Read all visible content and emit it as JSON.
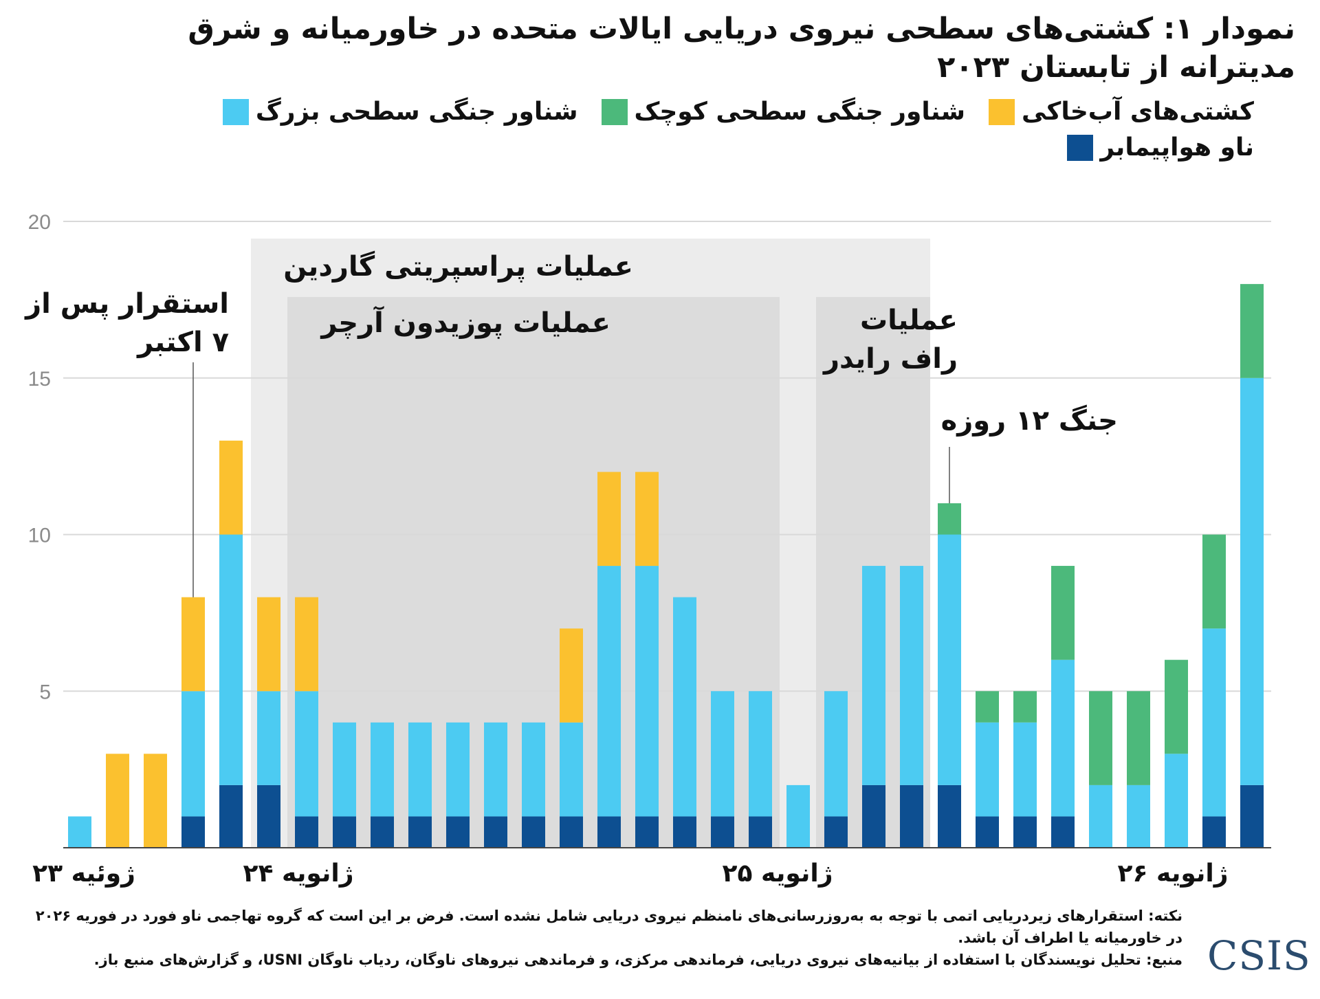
{
  "chart_data": {
    "type": "bar",
    "stacked": true,
    "title_lines": [
      "نمودار ۱: کشتی‌های سطحی نیروی دریایی ایالات متحده در خاورمیانه و شرق",
      "مدیترانه از تابستان ۲۰۲۳"
    ],
    "ylim": [
      0,
      20
    ],
    "yticks": [
      "5",
      "10",
      "15",
      "20"
    ],
    "ytick_values": [
      5,
      10,
      15,
      20
    ],
    "grid": true,
    "legend_position": "top",
    "series": [
      {
        "name": "ناو هواپیمابر",
        "color": "#0d4f91",
        "values": [
          0,
          0,
          0,
          1,
          2,
          2,
          1,
          1,
          1,
          1,
          1,
          1,
          1,
          1,
          1,
          1,
          1,
          1,
          1,
          0,
          1,
          2,
          2,
          2,
          1,
          1,
          1,
          0,
          0,
          0,
          1,
          2
        ]
      },
      {
        "name": "شناور جنگی سطحی بزرگ",
        "color": "#4ccbf2",
        "values": [
          1,
          0,
          0,
          4,
          8,
          3,
          4,
          3,
          3,
          3,
          3,
          3,
          3,
          3,
          8,
          8,
          7,
          4,
          4,
          2,
          4,
          7,
          7,
          8,
          3,
          3,
          5,
          2,
          2,
          3,
          6,
          13
        ]
      },
      {
        "name": "شناور جنگی سطحی کوچک",
        "color": "#4cb97b",
        "values": [
          0,
          0,
          0,
          0,
          0,
          0,
          0,
          0,
          0,
          0,
          0,
          0,
          0,
          0,
          0,
          0,
          0,
          0,
          0,
          0,
          0,
          0,
          0,
          1,
          1,
          1,
          3,
          3,
          3,
          3,
          3,
          3
        ]
      },
      {
        "name": "کشتی‌های آب‌خاکی",
        "color": "#fbc12f",
        "values": [
          0,
          3,
          3,
          3,
          3,
          3,
          3,
          0,
          0,
          0,
          0,
          0,
          0,
          3,
          3,
          3,
          0,
          0,
          0,
          0,
          0,
          0,
          0,
          0,
          0,
          0,
          0,
          0,
          0,
          0,
          0,
          0
        ]
      }
    ],
    "legend_order": [
      3,
      2,
      1,
      0
    ],
    "xtick_labels": [
      {
        "label": "ژوئیه ۲۳",
        "bar_index": 0
      },
      {
        "label": "ژانویه ۲۴",
        "bar_index": 6
      },
      {
        "label": "ژانویه ۲۵",
        "bar_index": 18
      },
      {
        "label": "ژانویه ۲۶",
        "bar_index": 30
      }
    ],
    "shaded_periods": [
      {
        "label": "عملیات پراسپریتی گاردین",
        "from_bar": 5,
        "to_bar": 23,
        "shade": "#ececec"
      },
      {
        "label": "عملیات پوزیدون آرچر",
        "from_bar": 6,
        "to_bar": 19,
        "shade": "#dcdcdc"
      },
      {
        "label_lines": [
          "عملیات",
          "راف رایدر"
        ],
        "from_bar": 20,
        "to_bar": 23,
        "shade": "#dcdcdc"
      }
    ],
    "annotations": [
      {
        "label_lines": [
          "استقرار پس از",
          "۷ اکتبر"
        ],
        "bar_index": 3
      },
      {
        "label": "جنگ ۱۲ روزه",
        "bar_index": 23
      }
    ]
  },
  "notes": {
    "note": "نکته: استقرارهای زیردریایی اتمی با توجه به به‌روزرسانی‌های نامنظم نیروی دریایی شامل نشده است. فرض بر این است که گروه تهاجمی ناو فورد در فوریه ۲۰۲۶ در خاورمیانه یا اطراف آن باشد.",
    "source": "منبع: تحلیل نویسندگان با استفاده از بیانیه‌های نیروی دریایی، فرماندهی مرکزی، و فرماندهی نیروهای ناوگان، ردیاب ناوگان USNI، و گزارش‌های منبع باز."
  },
  "logo": "CSIS"
}
